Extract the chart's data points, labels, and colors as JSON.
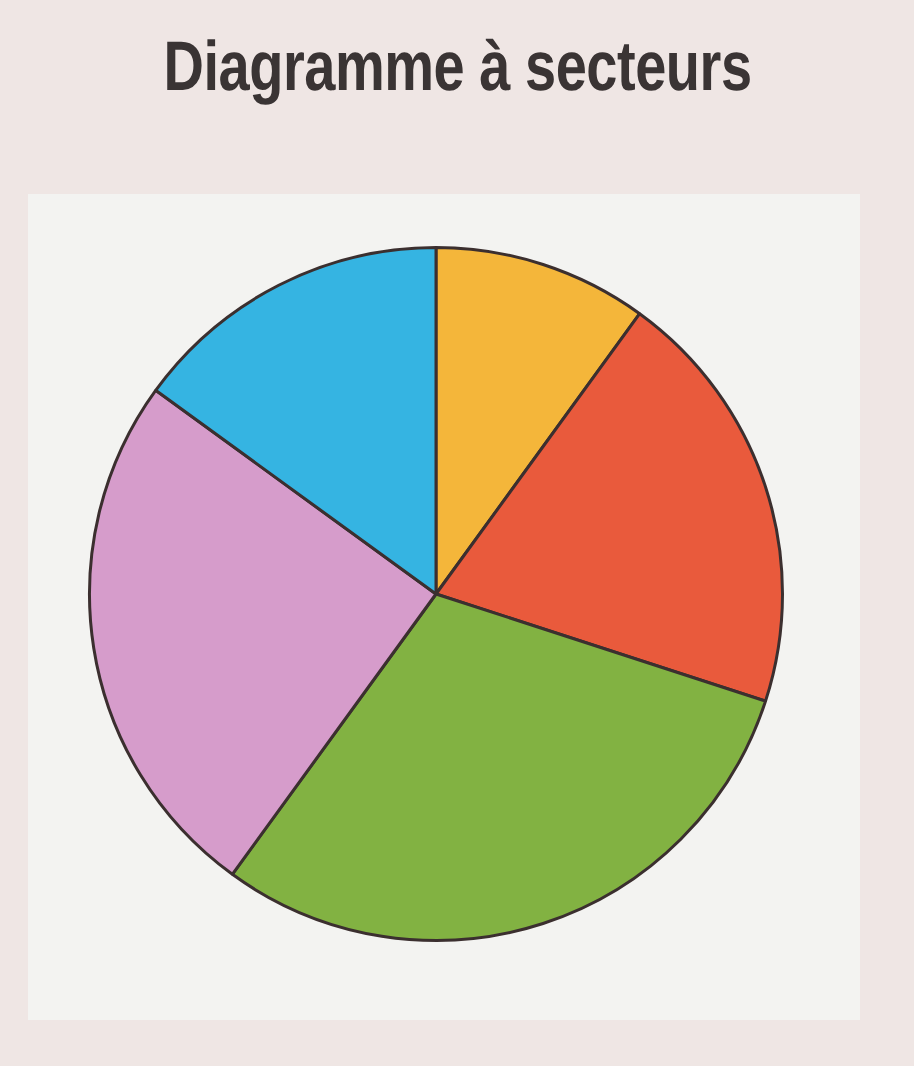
{
  "chart_data": {
    "type": "pie",
    "title": "Diagramme à secteurs",
    "categories": [
      null,
      null,
      null,
      null,
      null
    ],
    "values": [
      10,
      20,
      30,
      25,
      15
    ],
    "colors": [
      "#f4b63a",
      "#e95a3c",
      "#82b242",
      "#d69ccb",
      "#35b4e2"
    ]
  }
}
